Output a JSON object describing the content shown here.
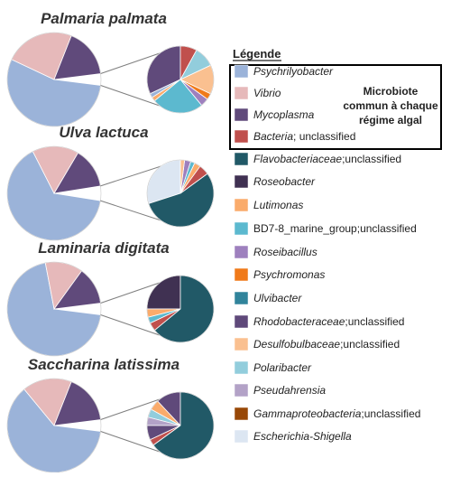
{
  "chart_data": {
    "type": "pie",
    "legend": {
      "title": "Légende",
      "placement": "right",
      "common_note_lines": [
        "Microbiote",
        "commun à chaque",
        "régime algal"
      ],
      "entries": [
        {
          "key": "psy",
          "parts": [
            {
              "t": "Psychrilyobacter",
              "i": true
            }
          ],
          "color": "#9BB3D9"
        },
        {
          "key": "vib",
          "parts": [
            {
              "t": "Vibrio",
              "i": true
            }
          ],
          "color": "#E6B9BA"
        },
        {
          "key": "myc",
          "parts": [
            {
              "t": "Mycoplasma",
              "i": true
            }
          ],
          "color": "#604A7B"
        },
        {
          "key": "bac",
          "parts": [
            {
              "t": "Bacteria",
              "i": true
            },
            {
              "t": "; unclassified",
              "i": false
            }
          ],
          "color": "#C0504D"
        },
        {
          "key": "flav",
          "parts": [
            {
              "t": "Flavobacteriaceae",
              "i": true
            },
            {
              "t": ";unclassified",
              "i": false
            }
          ],
          "color": "#215967"
        },
        {
          "key": "roseo",
          "parts": [
            {
              "t": "Roseobacter",
              "i": true
            }
          ],
          "color": "#403152"
        },
        {
          "key": "lut",
          "parts": [
            {
              "t": "Lutimonas",
              "i": true
            }
          ],
          "color": "#FAAB6B"
        },
        {
          "key": "bd7",
          "parts": [
            {
              "t": "BD7-8_marine_group;unclassified",
              "i": false
            }
          ],
          "color": "#5CB9CF"
        },
        {
          "key": "roseib",
          "parts": [
            {
              "t": "Roseibacillus",
              "i": true
            }
          ],
          "color": "#9E80BE"
        },
        {
          "key": "psychro",
          "parts": [
            {
              "t": "Psychromonas",
              "i": true
            }
          ],
          "color": "#F07A1A"
        },
        {
          "key": "ulv",
          "parts": [
            {
              "t": "Ulvibacter",
              "i": true
            }
          ],
          "color": "#31849B"
        },
        {
          "key": "rhodo",
          "parts": [
            {
              "t": "Rhodobacteraceae",
              "i": true
            },
            {
              "t": ";unclassified",
              "i": false
            }
          ],
          "color": "#5F497A"
        },
        {
          "key": "desulfo",
          "parts": [
            {
              "t": "Desulfobulbaceae",
              "i": true
            },
            {
              "t": ";unclassified",
              "i": false
            }
          ],
          "color": "#FAC090"
        },
        {
          "key": "polari",
          "parts": [
            {
              "t": "Polaribacter",
              "i": true
            }
          ],
          "color": "#92CDDC"
        },
        {
          "key": "pseudah",
          "parts": [
            {
              "t": "Pseudahrensia",
              "i": true
            }
          ],
          "color": "#B3A2C7"
        },
        {
          "key": "gamma",
          "parts": [
            {
              "t": "Gammaproteobacteria",
              "i": true
            },
            {
              "t": ";unclassified",
              "i": false
            }
          ],
          "color": "#984807"
        },
        {
          "key": "esch",
          "parts": [
            {
              "t": "Escherichia-Shigella",
              "i": true
            }
          ],
          "color": "#DCE6F2"
        }
      ]
    },
    "panels": [
      {
        "title": "Palmaria palmata",
        "main": [
          {
            "key": "psy",
            "value": 55
          },
          {
            "key": "vib",
            "value": 24
          },
          {
            "key": "myc",
            "value": 17
          },
          {
            "key": "other",
            "value": 4
          }
        ],
        "detail": [
          {
            "key": "myc",
            "value": 32
          },
          {
            "key": "psy",
            "value": 2
          },
          {
            "key": "lut",
            "value": 2
          },
          {
            "key": "bd7",
            "value": 25
          },
          {
            "key": "roseib",
            "value": 4
          },
          {
            "key": "psychro",
            "value": 3
          },
          {
            "key": "desulfo",
            "value": 14
          },
          {
            "key": "polari",
            "value": 10
          },
          {
            "key": "bac",
            "value": 8
          }
        ]
      },
      {
        "title": "Ulva lactuca",
        "main": [
          {
            "key": "psy",
            "value": 65
          },
          {
            "key": "vib",
            "value": 16
          },
          {
            "key": "myc",
            "value": 14
          },
          {
            "key": "other",
            "value": 5
          }
        ],
        "detail": [
          {
            "key": "esch",
            "value": 30
          },
          {
            "key": "flav",
            "value": 55
          },
          {
            "key": "bac",
            "value": 5
          },
          {
            "key": "lut",
            "value": 3
          },
          {
            "key": "bd7",
            "value": 2
          },
          {
            "key": "roseib",
            "value": 3
          },
          {
            "key": "desulfo",
            "value": 2
          }
        ]
      },
      {
        "title": "Laminaria digitata",
        "main": [
          {
            "key": "psy",
            "value": 70
          },
          {
            "key": "vib",
            "value": 13
          },
          {
            "key": "myc",
            "value": 13
          },
          {
            "key": "other",
            "value": 4
          }
        ],
        "detail": [
          {
            "key": "roseo",
            "value": 25
          },
          {
            "key": "lut",
            "value": 4
          },
          {
            "key": "bd7",
            "value": 3
          },
          {
            "key": "bac",
            "value": 4
          },
          {
            "key": "flav",
            "value": 64
          }
        ]
      },
      {
        "title": "Saccharina latissima",
        "main": [
          {
            "key": "psy",
            "value": 62
          },
          {
            "key": "vib",
            "value": 17
          },
          {
            "key": "myc",
            "value": 17
          },
          {
            "key": "other",
            "value": 4
          }
        ],
        "detail": [
          {
            "key": "rhodo",
            "value": 12
          },
          {
            "key": "lut",
            "value": 5
          },
          {
            "key": "polari",
            "value": 4
          },
          {
            "key": "pseudah",
            "value": 4
          },
          {
            "key": "myc",
            "value": 7
          },
          {
            "key": "bac",
            "value": 3
          },
          {
            "key": "flav",
            "value": 65
          }
        ]
      }
    ]
  }
}
